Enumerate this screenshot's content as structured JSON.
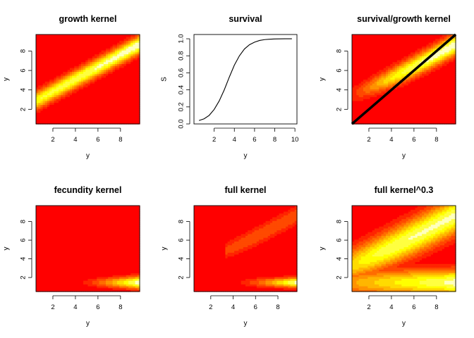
{
  "chart_data": [
    {
      "type": "heatmap",
      "title": "growth kernel",
      "xlabel": "y",
      "ylabel": "y",
      "xlim": [
        0.5,
        9.7
      ],
      "ylim": [
        0.5,
        9.7
      ],
      "xticks": [
        2,
        4,
        6,
        8
      ],
      "yticks": [
        2,
        4,
        6,
        8
      ],
      "colormap": "heat (red → yellow → pale yellow)",
      "surface": "narrow diagonal band: ridge from about (0.5, 3.2) to (9.7, 8.8), peak near the upper right",
      "overlay_line": null
    },
    {
      "type": "line",
      "title": "survival",
      "xlabel": "y",
      "ylabel": "S",
      "xlim": [
        0,
        10.2
      ],
      "ylim": [
        0,
        1.05
      ],
      "xticks": [
        2,
        4,
        6,
        8,
        10
      ],
      "yticks": [
        0.0,
        0.2,
        0.4,
        0.6,
        0.8,
        1.0
      ],
      "ytick_labels": [
        "0.0",
        "0.2",
        "0.4",
        "0.6",
        "0.8",
        "1.0"
      ],
      "series": [
        {
          "x": [
            0.5,
            1.0,
            1.5,
            2.0,
            2.5,
            3.0,
            3.5,
            4.0,
            4.5,
            5.0,
            5.5,
            6.0,
            6.5,
            7.0,
            7.5,
            8.0,
            8.5,
            9.0,
            9.5,
            9.7
          ],
          "values": [
            0.04,
            0.06,
            0.1,
            0.17,
            0.27,
            0.4,
            0.55,
            0.69,
            0.8,
            0.88,
            0.93,
            0.96,
            0.98,
            0.99,
            0.995,
            0.998,
            0.999,
            1.0,
            1.0,
            1.0
          ]
        }
      ]
    },
    {
      "type": "heatmap",
      "title": "survival/growth kernel",
      "xlabel": "y",
      "ylabel": "y",
      "xlim": [
        0.5,
        9.7
      ],
      "ylim": [
        0.5,
        9.7
      ],
      "xticks": [
        2,
        4,
        6,
        8
      ],
      "yticks": [
        2,
        4,
        6,
        8
      ],
      "colormap": "heat (red → yellow → pale yellow)",
      "surface": "diagonal band fading out below y ≈ 3.5, bright toward upper right",
      "overlay_line": {
        "x": [
          0.5,
          9.7
        ],
        "y": [
          0.5,
          9.7
        ],
        "color": "#000000"
      }
    },
    {
      "type": "heatmap",
      "title": "fecundity kernel",
      "xlabel": "y",
      "ylabel": "y",
      "xlim": [
        0.5,
        9.7
      ],
      "ylim": [
        0.5,
        9.7
      ],
      "xticks": [
        2,
        4,
        6,
        8
      ],
      "yticks": [
        2,
        4,
        6,
        8
      ],
      "colormap": "heat (red → yellow → pale yellow)",
      "surface": "thin horizontal band near y ≈ 1.5 starting at x ≈ 4, brightest at the right edge",
      "overlay_line": null
    },
    {
      "type": "heatmap",
      "title": "full kernel",
      "xlabel": "y",
      "ylabel": "y",
      "xlim": [
        0.5,
        9.7
      ],
      "ylim": [
        0.5,
        9.7
      ],
      "xticks": [
        2,
        4,
        6,
        8
      ],
      "yticks": [
        2,
        4,
        6,
        8
      ],
      "colormap": "heat (red → yellow → pale yellow)",
      "surface": "faint orange diagonal wedge from x ≈ 3.5 plus a bright horizontal band near y ≈ 1.5 on the right",
      "overlay_line": null
    },
    {
      "type": "heatmap",
      "title": "full kernel^0.3",
      "xlabel": "y",
      "ylabel": "y",
      "xlim": [
        0.5,
        9.7
      ],
      "ylim": [
        0.5,
        9.7
      ],
      "xticks": [
        2,
        4,
        6,
        8
      ],
      "yticks": [
        2,
        4,
        6,
        8
      ],
      "colormap": "heat (red → yellow → pale yellow)",
      "surface": "broad yellow diagonal wedge plus a wide bright horizontal band near y ≈ 1.5 across the whole width",
      "overlay_line": null
    }
  ]
}
